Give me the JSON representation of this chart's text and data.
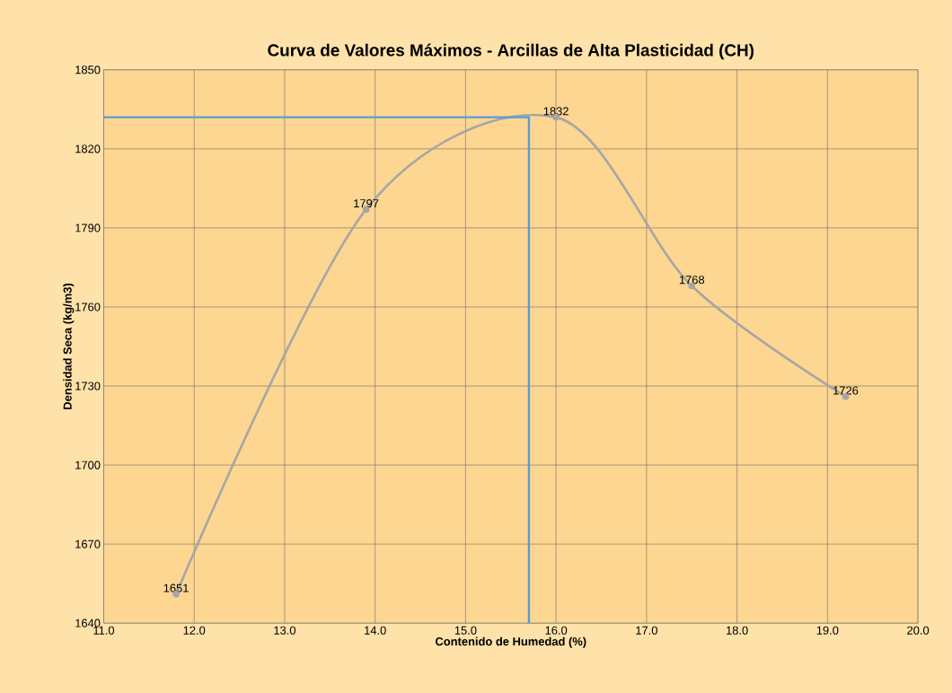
{
  "chart_data": {
    "type": "line",
    "title": "Curva de Valores Máximos - Arcillas de Alta Plasticidad (CH)",
    "xlabel": "Contenido de Humedad (%)",
    "ylabel": "Densidad Seca (kg/m3)",
    "xlim": [
      11.0,
      20.0
    ],
    "ylim": [
      1640,
      1850
    ],
    "xticks": [
      {
        "value": 11,
        "label": "11.0"
      },
      {
        "value": 12,
        "label": "12.0"
      },
      {
        "value": 13,
        "label": "13.0"
      },
      {
        "value": 14,
        "label": "14.0"
      },
      {
        "value": 15,
        "label": "15.0"
      },
      {
        "value": 16,
        "label": "16.0"
      },
      {
        "value": 17,
        "label": "17.0"
      },
      {
        "value": 18,
        "label": "18.0"
      },
      {
        "value": 19,
        "label": "19.0"
      },
      {
        "value": 20,
        "label": "20.0"
      }
    ],
    "yticks": [
      1640,
      1670,
      1700,
      1730,
      1760,
      1790,
      1820,
      1850
    ],
    "grid": true,
    "series": [
      {
        "color": "#a6a6a6",
        "x": [
          11.8,
          13.9,
          16.0,
          17.5,
          19.2
        ],
        "values": [
          1651,
          1797,
          1832,
          1768,
          1726
        ],
        "value_labels": [
          "1651",
          "1797",
          "1832",
          "1768",
          "1726"
        ],
        "marker": "circle",
        "line_style": "solid"
      },
      {
        "color": "#5b9bd5",
        "x": [
          11.0,
          15.7,
          15.7
        ],
        "values": [
          1832,
          1832,
          1640
        ],
        "marker": "none",
        "line_style": "solid"
      }
    ]
  }
}
